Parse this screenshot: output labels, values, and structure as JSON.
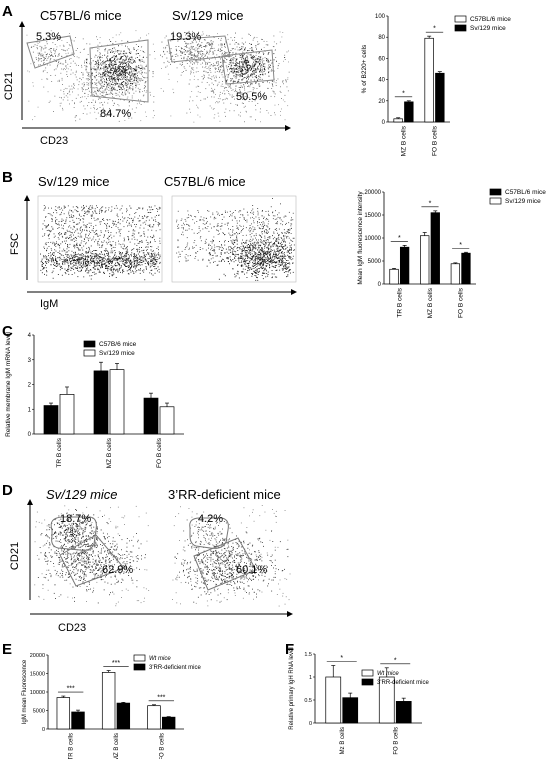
{
  "panel_letters": {
    "a": "A",
    "b": "B",
    "c": "C",
    "d": "D",
    "e": "E",
    "f": "F"
  },
  "panelA": {
    "flow": {
      "strain_left": "C57BL/6 mice",
      "strain_right": "Sv/129 mice",
      "ylabel": "CD21",
      "xlabel": "CD23",
      "left_gate_mz": "5.3%",
      "left_gate_fo": "84.7%",
      "right_gate_mz": "19.3%",
      "right_gate_fo": "50.5%"
    }
  },
  "panelB": {
    "flow": {
      "strain_left": "Sv/129 mice",
      "strain_right": "C57BL/6 mice",
      "ylabel": "FSC",
      "xlabel": "IgM"
    }
  },
  "panelD": {
    "flow": {
      "strain_left": "Sv/129 mice",
      "strain_right": "3’RR-deficient mice",
      "ylabel": "CD21",
      "xlabel": "CD23",
      "left_gate_mz": "18.7%",
      "left_gate_fo": "62.9%",
      "right_gate_mz": "4.2%",
      "right_gate_fo": "60.1%"
    }
  },
  "chart_data": [
    {
      "id": "A",
      "type": "bar",
      "ylabel": "% of B220+ cells",
      "categories": [
        "MZ B cells",
        "FO B cells"
      ],
      "ylim": [
        0,
        100
      ],
      "yticks": [
        0,
        20,
        40,
        60,
        80,
        100
      ],
      "series": [
        {
          "name": "C57BL/6 mice",
          "color": "#ffffff",
          "values": [
            3,
            79
          ],
          "errors": [
            1,
            2
          ]
        },
        {
          "name": "Sv/129 mice",
          "color": "#000000",
          "values": [
            19,
            46
          ],
          "errors": [
            1,
            1.5
          ]
        }
      ],
      "significance": [
        "*",
        "*"
      ],
      "legend": "top-right"
    },
    {
      "id": "B",
      "type": "bar",
      "ylabel": "Mean IgM fluorescence intensity",
      "categories": [
        "TR B cells",
        "MZ B cells",
        "FO B cells"
      ],
      "ylim": [
        0,
        20000
      ],
      "yticks": [
        0,
        5000,
        10000,
        15000,
        20000
      ],
      "series": [
        {
          "name": "Sv/129 mice",
          "color": "#ffffff",
          "values": [
            3200,
            10500,
            4400
          ],
          "errors": [
            200,
            700,
            200
          ]
        },
        {
          "name": "C57BL/6 mice",
          "color": "#000000",
          "values": [
            8000,
            15500,
            6700
          ],
          "errors": [
            400,
            400,
            200
          ]
        }
      ],
      "legend_order": [
        1,
        0
      ],
      "significance": [
        "*",
        "*",
        "*"
      ],
      "legend": "top-right"
    },
    {
      "id": "C",
      "type": "bar",
      "ylabel": "Relative membrane IgM mRNA level",
      "categories": [
        "TR B cells",
        "MZ B cells",
        "FO B cells"
      ],
      "ylim": [
        0,
        4
      ],
      "yticks": [
        0,
        1,
        2,
        3,
        4
      ],
      "series": [
        {
          "name": "C57B/6 mice",
          "color": "#000000",
          "values": [
            1.15,
            2.55,
            1.45
          ],
          "errors": [
            0.1,
            0.35,
            0.2
          ]
        },
        {
          "name": "Sv/129 mice",
          "color": "#ffffff",
          "values": [
            1.6,
            2.6,
            1.1
          ],
          "errors": [
            0.3,
            0.25,
            0.15
          ]
        }
      ],
      "significance": [],
      "legend": "top"
    },
    {
      "id": "E",
      "type": "bar",
      "ylabel": "IgM mean Fluorescence",
      "categories": [
        "TR B cells",
        "MZ B cells",
        "FO B cells"
      ],
      "ylim": [
        0,
        20000
      ],
      "yticks": [
        0,
        5000,
        10000,
        15000,
        20000
      ],
      "series": [
        {
          "name": "Wt mice",
          "color": "#ffffff",
          "values": [
            8500,
            15300,
            6300
          ],
          "errors": [
            400,
            500,
            250
          ]
        },
        {
          "name": "3'RR-deficient mice",
          "color": "#000000",
          "values": [
            4600,
            7000,
            3200
          ],
          "errors": [
            500,
            200,
            150
          ]
        }
      ],
      "significance": [
        "***",
        "***",
        "***"
      ],
      "legend": "top-right"
    },
    {
      "id": "F",
      "type": "bar",
      "ylabel": "Relative primary IgH RNA level",
      "categories": [
        "Mz B cells",
        "FO B cells"
      ],
      "ylim": [
        0,
        1.5
      ],
      "yticks": [
        0,
        0.5,
        1,
        1.5
      ],
      "series": [
        {
          "name": "Wt mice",
          "color": "#ffffff",
          "values": [
            1.0,
            1.0
          ],
          "errors": [
            0.25,
            0.2
          ]
        },
        {
          "name": "3'RR-deficient mice",
          "color": "#000000",
          "values": [
            0.55,
            0.47
          ],
          "errors": [
            0.1,
            0.07
          ]
        }
      ],
      "significance": [
        "*",
        "*"
      ],
      "legend": "top-right"
    }
  ]
}
